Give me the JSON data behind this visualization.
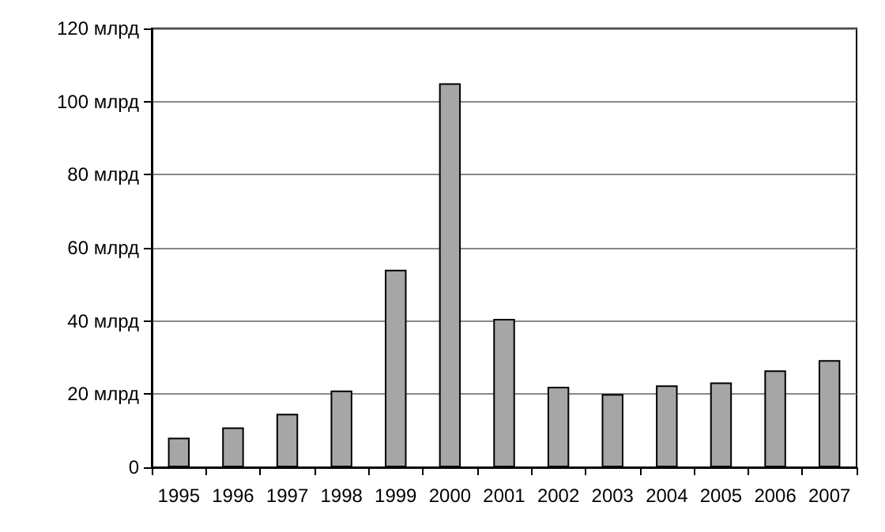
{
  "chart_data": {
    "type": "bar",
    "categories": [
      "1995",
      "1996",
      "1997",
      "1998",
      "1999",
      "2000",
      "2001",
      "2002",
      "2003",
      "2004",
      "2005",
      "2006",
      "2007"
    ],
    "values": [
      8.1,
      10.9,
      14.6,
      21,
      54,
      105,
      40.6,
      22,
      20,
      22.4,
      23.2,
      26.5,
      29.3
    ],
    "color": "#a6a6a6",
    "ylim": [
      0,
      120
    ],
    "yticks": [
      0,
      {
        "value": 20,
        "label": "20 млрд"
      },
      {
        "value": 40,
        "label": "40 млрд"
      },
      {
        "value": 60,
        "label": "60 млрд"
      },
      {
        "value": 80,
        "label": "80 млрд"
      },
      {
        "value": 100,
        "label": "100 млрд"
      },
      {
        "value": 120,
        "label": "120 млрд"
      }
    ],
    "grid": "y"
  }
}
